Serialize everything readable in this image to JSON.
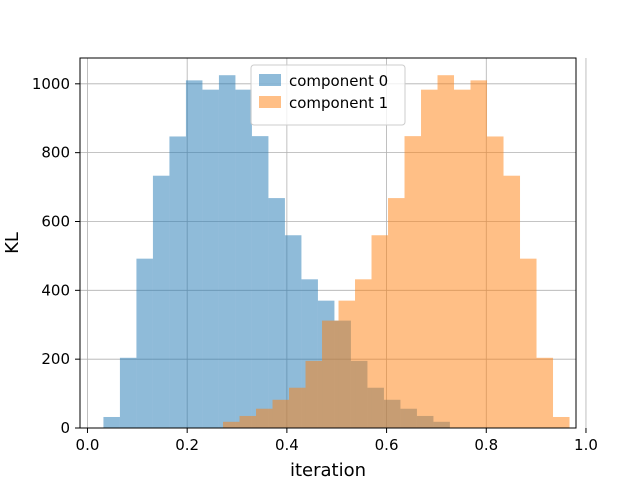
{
  "chart_data": {
    "type": "histogram",
    "xlabel": "iteration",
    "ylabel": "KL",
    "xlim": [
      -0.015,
      0.98
    ],
    "ylim": [
      0,
      1075
    ],
    "grid": true,
    "legend_position": "top-center",
    "x_ticks": [
      {
        "value": 0.0,
        "label": "0.0"
      },
      {
        "value": 0.2,
        "label": "0.2"
      },
      {
        "value": 0.4,
        "label": "0.4"
      },
      {
        "value": 0.6,
        "label": "0.6"
      },
      {
        "value": 0.8,
        "label": "0.8"
      },
      {
        "value": 1.0,
        "label": "1.0"
      }
    ],
    "y_ticks": [
      {
        "value": 0,
        "label": "0"
      },
      {
        "value": 200,
        "label": "200"
      },
      {
        "value": 400,
        "label": "400"
      },
      {
        "value": 600,
        "label": "600"
      },
      {
        "value": 800,
        "label": "800"
      },
      {
        "value": 1000,
        "label": "1000"
      }
    ],
    "series": [
      {
        "name": "component 0",
        "color": "#1f77b4",
        "opacity": 0.5,
        "bin_edges": [
          0.032,
          0.0651,
          0.0982,
          0.1313,
          0.1644,
          0.1975,
          0.2306,
          0.2637,
          0.2968,
          0.3299,
          0.363,
          0.3961,
          0.4292,
          0.4623,
          0.4954,
          0.5285,
          0.5616,
          0.5947,
          0.6278,
          0.6609,
          0.694,
          0.727
        ],
        "counts": [
          32,
          204,
          492,
          733,
          847,
          1010,
          983,
          1025,
          983,
          848,
          668,
          560,
          432,
          370,
          312,
          195,
          117,
          82,
          56,
          35,
          18
        ]
      },
      {
        "name": "component 1",
        "color": "#ff7f0e",
        "opacity": 0.5,
        "bin_edges": [
          0.2719,
          0.305,
          0.3381,
          0.3712,
          0.4043,
          0.4374,
          0.4705,
          0.5036,
          0.5367,
          0.5698,
          0.6029,
          0.636,
          0.6691,
          0.7022,
          0.7353,
          0.7684,
          0.8015,
          0.8346,
          0.8677,
          0.9008,
          0.9339,
          0.967
        ],
        "counts": [
          18,
          35,
          56,
          82,
          117,
          195,
          312,
          370,
          432,
          560,
          668,
          848,
          983,
          1025,
          983,
          1010,
          847,
          733,
          492,
          204,
          32
        ]
      }
    ]
  }
}
